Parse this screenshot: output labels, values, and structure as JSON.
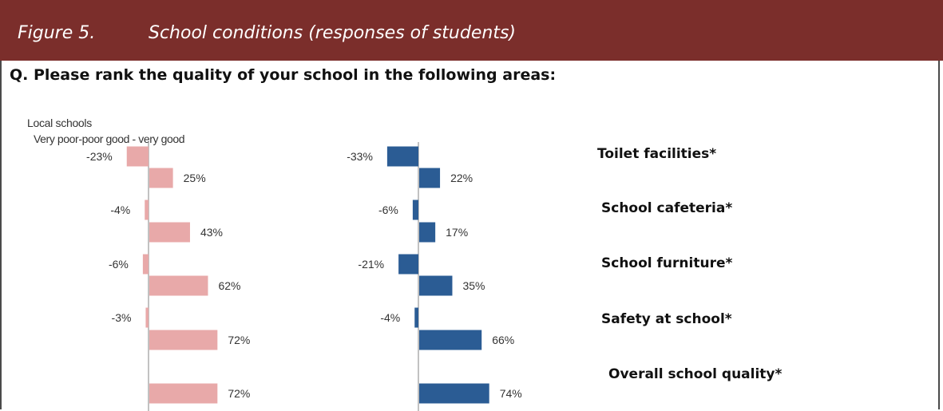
{
  "header": {
    "figure_label": "Figure 5.",
    "figure_title": "School conditions (responses of students)"
  },
  "question": "Q.  Please rank the quality of your school in the following areas:",
  "panel_labels": {
    "title": "Local schools",
    "subtitle": "Very poor-poor good - very good"
  },
  "colors": {
    "header_bg": "#7b2e2b",
    "local_bars": "#e8a9a9",
    "comparison_bars": "#2b5c94",
    "axis": "#999999"
  },
  "chart_data": {
    "type": "bar",
    "orientation": "horizontal",
    "title": "",
    "categories": [
      "Toilet facilities*",
      "School cafeteria*",
      "School furniture*",
      "Safety at school*",
      "Overall school quality*"
    ],
    "panels": [
      {
        "name": "Local schools",
        "color": "#e8a9a9",
        "negative": [
          -23,
          -4,
          -6,
          -3,
          null
        ],
        "positive": [
          25,
          43,
          62,
          72,
          72
        ]
      },
      {
        "color": "#2b5c94",
        "negative": [
          -33,
          -6,
          -21,
          -4,
          null
        ],
        "positive": [
          22,
          17,
          35,
          66,
          74
        ]
      }
    ],
    "value_unit": "%",
    "grid": false,
    "legend": "none"
  }
}
